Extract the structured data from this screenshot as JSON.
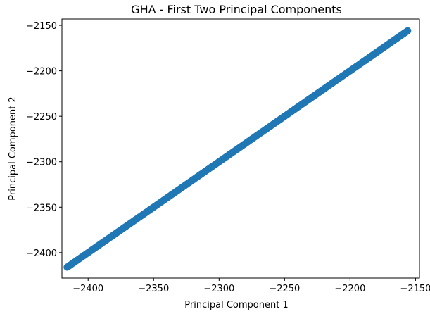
{
  "chart_data": {
    "type": "scatter",
    "title": "GHA - First Two Principal Components",
    "xlabel": "Principal Component 1",
    "ylabel": "Principal Component 2",
    "xlim": [
      -2420,
      -2147
    ],
    "ylim": [
      -2428,
      -2143
    ],
    "xticks": [
      -2400,
      -2350,
      -2300,
      -2250,
      -2200,
      -2150
    ],
    "yticks": [
      -2150,
      -2200,
      -2250,
      -2300,
      -2350,
      -2400
    ],
    "xtick_labels": [
      "−2400",
      "−2350",
      "−2300",
      "−2250",
      "−2200",
      "−2150"
    ],
    "ytick_labels": [
      "−2150",
      "−2200",
      "−2250",
      "−2300",
      "−2350",
      "−2400"
    ],
    "grid": false,
    "series": [
      {
        "color": "#1f77b4",
        "start": [
          -2416,
          -2416
        ],
        "end": [
          -2156,
          -2156
        ],
        "x": [
          -2416,
          -2414,
          -2411,
          -2408,
          -2405,
          -2403,
          -2400,
          -2397,
          -2394,
          -2392,
          -2389,
          -2386,
          -2383,
          -2380,
          -2378,
          -2375,
          -2372,
          -2369,
          -2367,
          -2364,
          -2361,
          -2358,
          -2356,
          -2353,
          -2350,
          -2347,
          -2344,
          -2342,
          -2339,
          -2336,
          -2333,
          -2331,
          -2328,
          -2325,
          -2322,
          -2320,
          -2317,
          -2314,
          -2311,
          -2308,
          -2306,
          -2303,
          -2300,
          -2297,
          -2295,
          -2292,
          -2289,
          -2286,
          -2284,
          -2281,
          -2278,
          -2275,
          -2272,
          -2270,
          -2267,
          -2264,
          -2261,
          -2259,
          -2256,
          -2253,
          -2250,
          -2248,
          -2245,
          -2242,
          -2239,
          -2236,
          -2234,
          -2231,
          -2228,
          -2225,
          -2223,
          -2220,
          -2217,
          -2214,
          -2212,
          -2209,
          -2206,
          -2203,
          -2200,
          -2198,
          -2195,
          -2192,
          -2189,
          -2187,
          -2184,
          -2181,
          -2178,
          -2176,
          -2173,
          -2170,
          -2167,
          -2164,
          -2162,
          -2159,
          -2156
        ],
        "y": [
          -2416,
          -2414,
          -2411,
          -2408,
          -2405,
          -2403,
          -2400,
          -2397,
          -2394,
          -2392,
          -2389,
          -2386,
          -2383,
          -2380,
          -2378,
          -2375,
          -2372,
          -2369,
          -2367,
          -2364,
          -2361,
          -2358,
          -2356,
          -2353,
          -2350,
          -2347,
          -2344,
          -2342,
          -2339,
          -2336,
          -2333,
          -2331,
          -2328,
          -2325,
          -2322,
          -2320,
          -2317,
          -2314,
          -2311,
          -2308,
          -2306,
          -2303,
          -2300,
          -2297,
          -2295,
          -2292,
          -2289,
          -2286,
          -2284,
          -2281,
          -2278,
          -2275,
          -2272,
          -2270,
          -2267,
          -2264,
          -2261,
          -2259,
          -2256,
          -2253,
          -2250,
          -2248,
          -2245,
          -2242,
          -2239,
          -2236,
          -2234,
          -2231,
          -2228,
          -2225,
          -2223,
          -2220,
          -2217,
          -2214,
          -2212,
          -2209,
          -2206,
          -2203,
          -2200,
          -2198,
          -2195,
          -2192,
          -2189,
          -2187,
          -2184,
          -2181,
          -2178,
          -2176,
          -2173,
          -2170,
          -2167,
          -2164,
          -2162,
          -2159,
          -2156
        ]
      }
    ]
  }
}
